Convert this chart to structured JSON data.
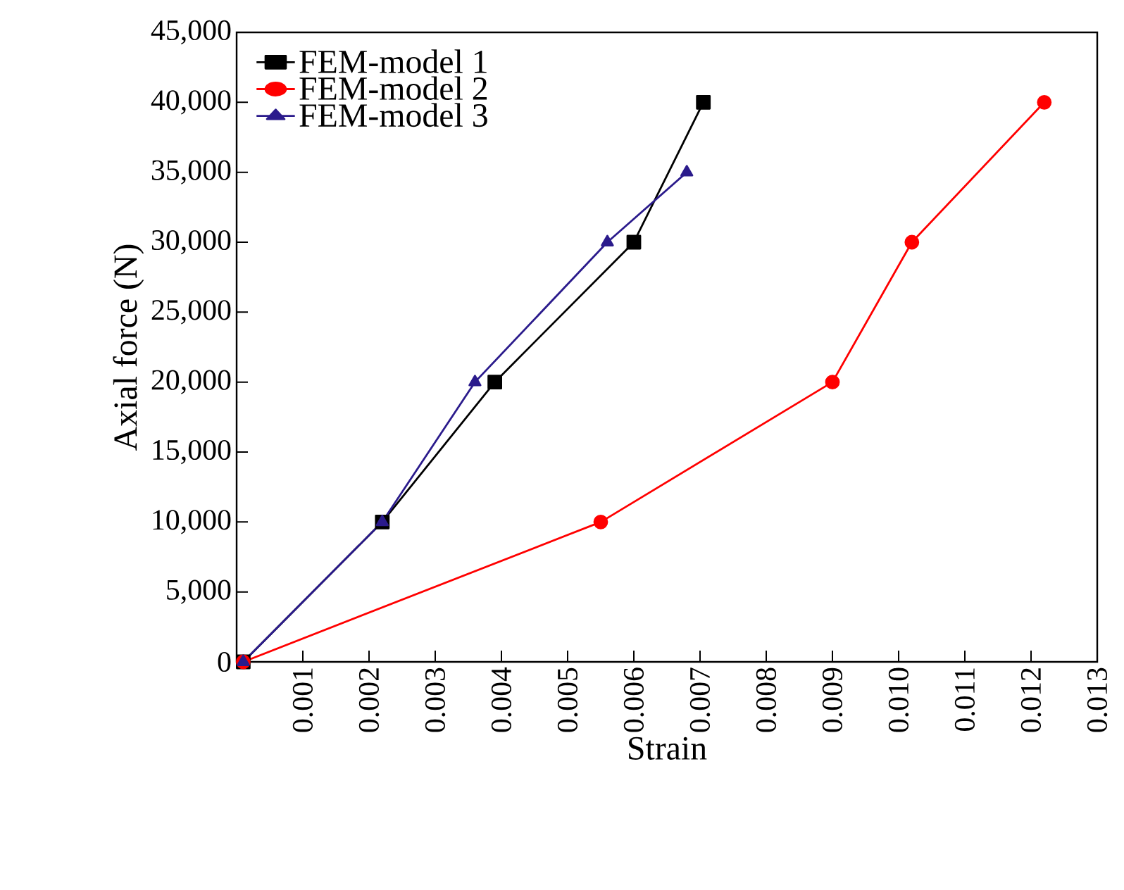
{
  "chart_data": {
    "type": "line",
    "xlabel": "Strain",
    "ylabel": "Axial force (N)",
    "xlim": [
      0,
      0.013
    ],
    "xticks": [
      0.001,
      0.002,
      0.003,
      0.004,
      0.005,
      0.006,
      0.007,
      0.008,
      0.009,
      {
        "value": 0.01,
        "label": "0.010"
      },
      0.011,
      0.012,
      0.013
    ],
    "ylim": [
      0,
      45000
    ],
    "yticks": [
      0,
      {
        "value": 5000,
        "label": "5,000"
      },
      {
        "value": 10000,
        "label": "10,000"
      },
      {
        "value": 15000,
        "label": "15,000"
      },
      {
        "value": 20000,
        "label": "20,000"
      },
      {
        "value": 25000,
        "label": "25,000"
      },
      {
        "value": 30000,
        "label": "30,000"
      },
      {
        "value": 35000,
        "label": "35,000"
      },
      {
        "value": 40000,
        "label": "40,000"
      },
      {
        "value": 45000,
        "label": "45,000"
      }
    ],
    "legend": "top left",
    "grid": false,
    "line_style": "solid",
    "series": [
      {
        "name": "FEM-model 1",
        "color": "#000000",
        "marker": "square",
        "x": [
          0.0001,
          0.0022,
          0.0039,
          0.006,
          0.00705
        ],
        "values": [
          0,
          10000,
          20000,
          30000,
          40000
        ]
      },
      {
        "name": "FEM-model 2",
        "color": "#ff0000",
        "marker": "circle",
        "x": [
          0.0001,
          0.0055,
          0.009,
          0.0102,
          0.0122
        ],
        "values": [
          0,
          10000,
          20000,
          30000,
          40000
        ]
      },
      {
        "name": "FEM-model 3",
        "color": "#2b1b8c",
        "marker": "triangle",
        "x": [
          0.0001,
          0.0022,
          0.0036,
          0.0056,
          0.0068
        ],
        "values": [
          0,
          10000,
          20000,
          30000,
          35000
        ]
      }
    ]
  }
}
